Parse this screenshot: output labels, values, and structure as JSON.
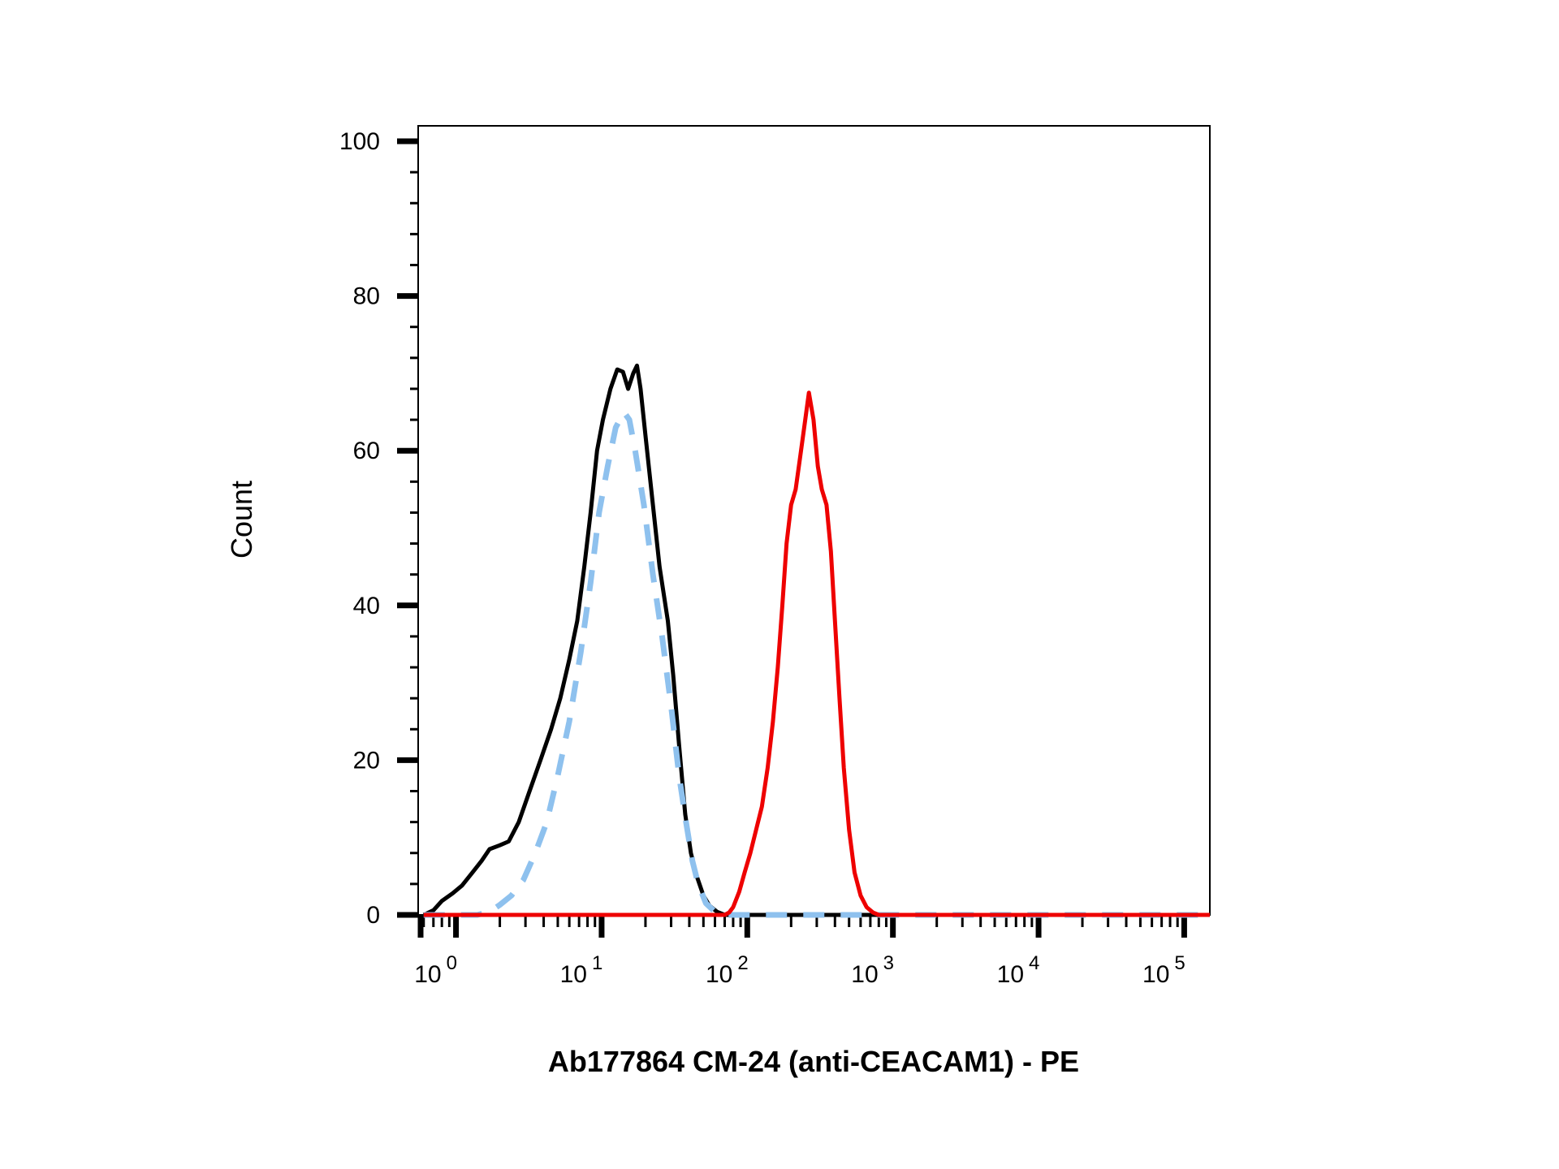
{
  "chart_data": {
    "type": "line",
    "xlabel": "Ab177864 CM-24 (anti-CEACAM1) - PE",
    "ylabel": "Count",
    "x_scale": "log",
    "xlim": [
      0.55,
      150000
    ],
    "ylim": [
      0,
      100
    ],
    "x_ticks": [
      {
        "value": 1,
        "base": "10",
        "exp": "0"
      },
      {
        "value": 10,
        "base": "10",
        "exp": "1"
      },
      {
        "value": 100,
        "base": "10",
        "exp": "2"
      },
      {
        "value": 1000,
        "base": "10",
        "exp": "3"
      },
      {
        "value": 10000,
        "base": "10",
        "exp": "4"
      },
      {
        "value": 100000,
        "base": "10",
        "exp": "5"
      }
    ],
    "y_ticks": [
      0,
      20,
      40,
      60,
      80,
      100
    ],
    "grid": false,
    "legend": "none",
    "series": [
      {
        "color": "#000000",
        "style": "solid",
        "points": [
          [
            0.6,
            0
          ],
          [
            0.7,
            0.6
          ],
          [
            0.8,
            1.8
          ],
          [
            0.95,
            2.8
          ],
          [
            1.1,
            3.8
          ],
          [
            1.3,
            5.5
          ],
          [
            1.5,
            7
          ],
          [
            1.7,
            8.5
          ],
          [
            2.0,
            9
          ],
          [
            2.3,
            9.5
          ],
          [
            2.7,
            12
          ],
          [
            3.2,
            16
          ],
          [
            3.8,
            20
          ],
          [
            4.5,
            24
          ],
          [
            5.2,
            28
          ],
          [
            6.0,
            33
          ],
          [
            6.8,
            38
          ],
          [
            7.6,
            45
          ],
          [
            8.4,
            52
          ],
          [
            9.3,
            60
          ],
          [
            10.2,
            64
          ],
          [
            11.5,
            68
          ],
          [
            12.8,
            70.5
          ],
          [
            14.0,
            70.2
          ],
          [
            15.2,
            68
          ],
          [
            16.5,
            70
          ],
          [
            17.5,
            71
          ],
          [
            18.5,
            68
          ],
          [
            20.0,
            62
          ],
          [
            22.5,
            53
          ],
          [
            25.0,
            45
          ],
          [
            28.5,
            38
          ],
          [
            31.0,
            31
          ],
          [
            34.0,
            22
          ],
          [
            37.5,
            13
          ],
          [
            41.0,
            8
          ],
          [
            45.0,
            5
          ],
          [
            50.0,
            2.5
          ],
          [
            55.0,
            1.2
          ],
          [
            62.0,
            0.4
          ],
          [
            70.0,
            0
          ],
          [
            100,
            0
          ],
          [
            150,
            0
          ],
          [
            200,
            0
          ],
          [
            1000,
            0
          ],
          [
            150000,
            0
          ]
        ]
      },
      {
        "color": "#8ec1ee",
        "style": "dashed",
        "points": [
          [
            0.6,
            0
          ],
          [
            1.0,
            0
          ],
          [
            1.4,
            0
          ],
          [
            1.7,
            0.4
          ],
          [
            2.0,
            1.3
          ],
          [
            2.4,
            2.5
          ],
          [
            2.9,
            4.5
          ],
          [
            3.5,
            8
          ],
          [
            4.2,
            12
          ],
          [
            5.0,
            18
          ],
          [
            6.0,
            25
          ],
          [
            7.2,
            34
          ],
          [
            8.4,
            43
          ],
          [
            9.6,
            52
          ],
          [
            11.0,
            58
          ],
          [
            12.5,
            63
          ],
          [
            14.2,
            65
          ],
          [
            15.5,
            64
          ],
          [
            17.0,
            60
          ],
          [
            19.5,
            53
          ],
          [
            22.5,
            44
          ],
          [
            26.0,
            36
          ],
          [
            30.0,
            27
          ],
          [
            34.0,
            18
          ],
          [
            38.0,
            12
          ],
          [
            42.0,
            7
          ],
          [
            46.0,
            4
          ],
          [
            52.0,
            1.5
          ],
          [
            60.0,
            0.4
          ],
          [
            70.0,
            0
          ],
          [
            100,
            0
          ],
          [
            1000,
            0
          ],
          [
            150000,
            0
          ]
        ]
      },
      {
        "color": "#ee0000",
        "style": "solid",
        "points": [
          [
            0.6,
            0
          ],
          [
            50,
            0
          ],
          [
            60,
            0
          ],
          [
            70,
            0
          ],
          [
            75,
            0.3
          ],
          [
            80,
            1
          ],
          [
            88,
            3
          ],
          [
            96,
            5.5
          ],
          [
            105,
            8
          ],
          [
            115,
            11
          ],
          [
            126,
            14
          ],
          [
            138,
            19
          ],
          [
            150,
            25
          ],
          [
            162,
            32
          ],
          [
            174,
            40
          ],
          [
            186,
            48
          ],
          [
            200,
            53
          ],
          [
            215,
            55
          ],
          [
            230,
            59
          ],
          [
            250,
            64
          ],
          [
            265,
            67.5
          ],
          [
            285,
            64
          ],
          [
            305,
            58
          ],
          [
            325,
            55
          ],
          [
            350,
            53
          ],
          [
            375,
            47
          ],
          [
            400,
            38
          ],
          [
            430,
            28
          ],
          [
            460,
            19
          ],
          [
            500,
            11
          ],
          [
            545,
            5.5
          ],
          [
            600,
            2.5
          ],
          [
            660,
            1
          ],
          [
            730,
            0.3
          ],
          [
            800,
            0
          ],
          [
            1000,
            0
          ],
          [
            10000,
            0
          ],
          [
            150000,
            0
          ]
        ]
      }
    ]
  }
}
